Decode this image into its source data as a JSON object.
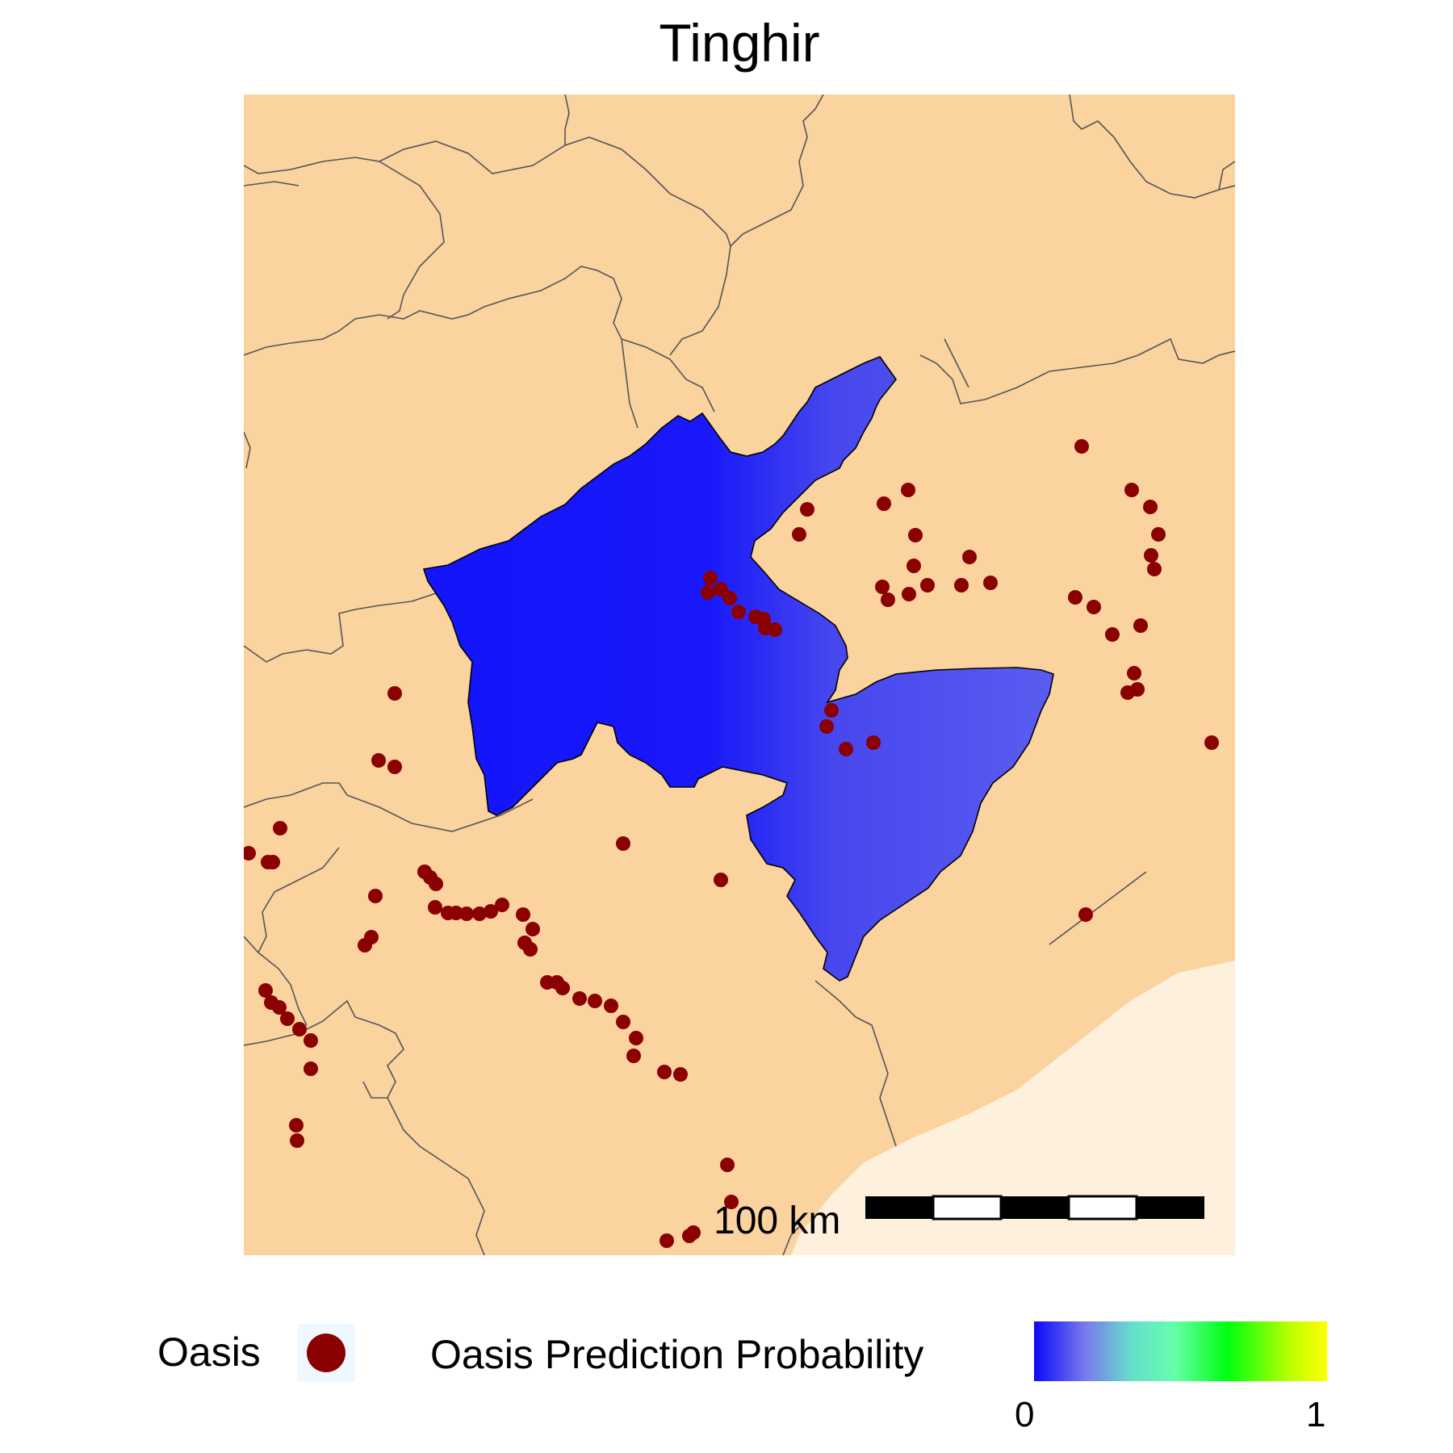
{
  "title": "Tinghir",
  "map": {
    "land_color": "#fad39f",
    "sea_color": "#fdf0dc",
    "border_color": "#555555",
    "region_outline_color": "#000000",
    "oasis_color": "#8b0000",
    "prediction_palette": [
      "#0a0afa",
      "#7777ee",
      "#66ddcc",
      "#66ffaa",
      "#00ff11",
      "#c0ff00",
      "#ffff00"
    ]
  },
  "legend": {
    "oasis_label": "Oasis",
    "oasis_symbol": "filled-circle",
    "probability_label": "Oasis Prediction Probability",
    "probability_min": "0",
    "probability_max": "1"
  },
  "scale_bar": {
    "label": "100 km",
    "segments": 5
  }
}
